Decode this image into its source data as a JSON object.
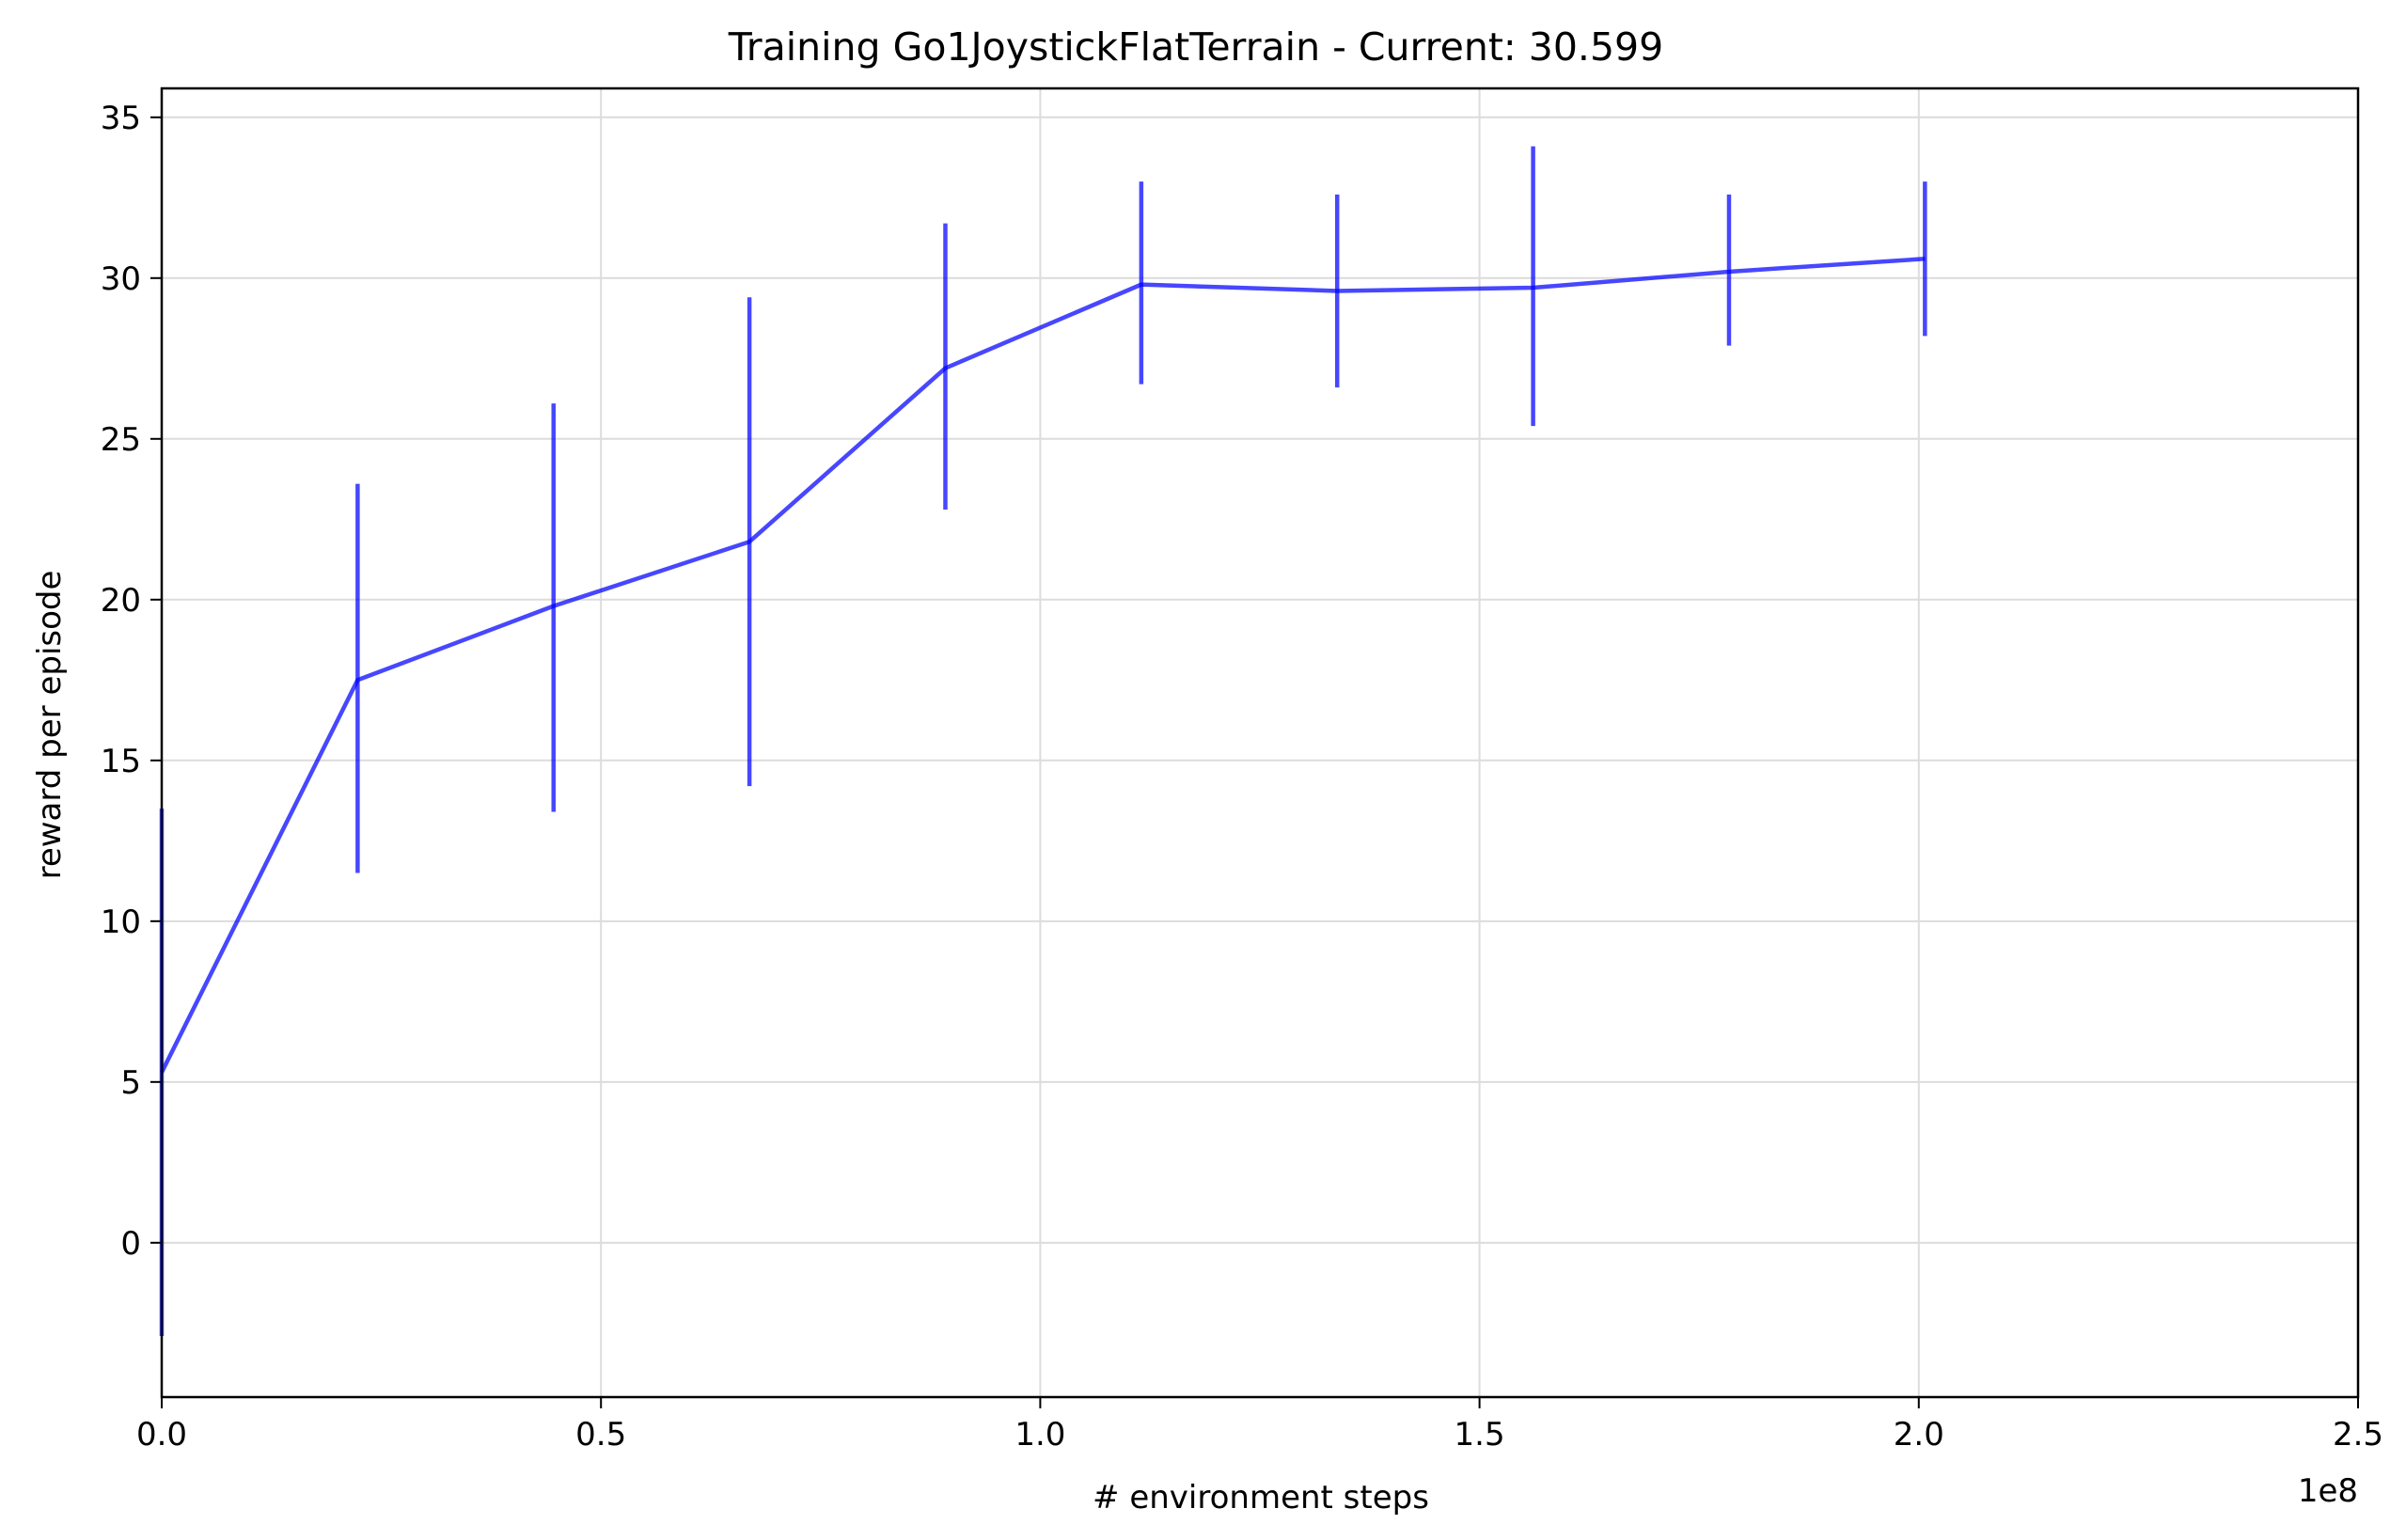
{
  "chart_data": {
    "type": "line",
    "title": "Training Go1JoystickFlatTerrain - Current: 30.599",
    "xlabel": "# environment steps",
    "ylabel": "reward per episode",
    "x_offset_label": "1e8",
    "xlim": [
      0,
      2.5
    ],
    "ylim": [
      -4.8,
      35.9
    ],
    "x_ticks": [
      0.0,
      0.5,
      1.0,
      1.5,
      2.0,
      2.5
    ],
    "x_tick_labels": [
      "0.0",
      "0.5",
      "1.0",
      "1.5",
      "2.0",
      "2.5"
    ],
    "y_ticks": [
      0,
      5,
      10,
      15,
      20,
      25,
      30,
      35
    ],
    "y_tick_labels": [
      "0",
      "5",
      "10",
      "15",
      "20",
      "25",
      "30",
      "35"
    ],
    "grid": true,
    "color": "#0000ff",
    "series": [
      {
        "x": [
          0.0,
          0.223,
          0.446,
          0.669,
          0.892,
          1.115,
          1.338,
          1.561,
          1.784,
          2.007
        ],
        "y": [
          5.3,
          17.5,
          19.8,
          21.8,
          27.2,
          29.8,
          29.6,
          29.7,
          30.2,
          30.6
        ],
        "err_low": [
          -2.9,
          11.5,
          13.4,
          14.2,
          22.8,
          26.7,
          26.6,
          25.4,
          27.9,
          28.2
        ],
        "err_high": [
          13.5,
          23.6,
          26.1,
          29.4,
          31.7,
          33.0,
          32.6,
          34.1,
          32.6,
          33.0
        ]
      }
    ]
  }
}
